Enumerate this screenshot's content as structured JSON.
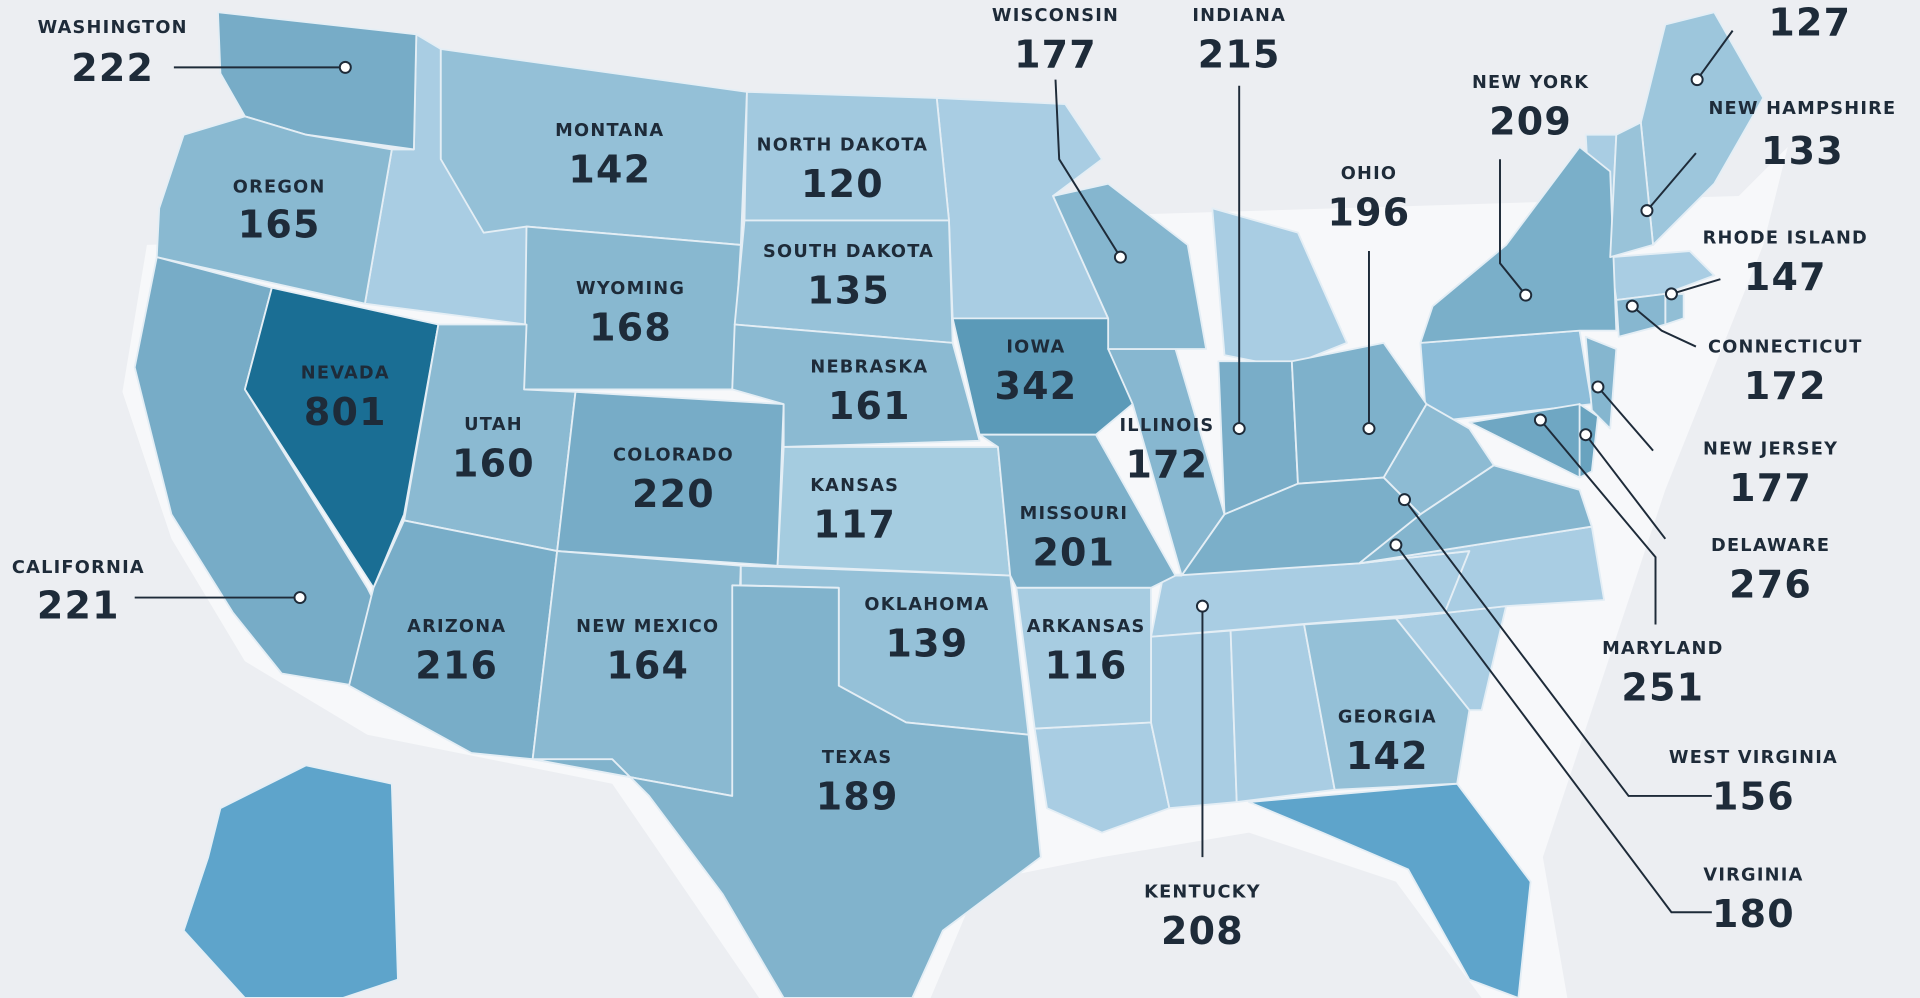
{
  "states": [
    {
      "name": "WASHINGTON",
      "value": 222
    },
    {
      "name": "OREGON",
      "value": 165
    },
    {
      "name": "CALIFORNIA",
      "value": 221
    },
    {
      "name": "NEVADA",
      "value": 801
    },
    {
      "name": "MONTANA",
      "value": 142
    },
    {
      "name": "WYOMING",
      "value": 168
    },
    {
      "name": "UTAH",
      "value": 160
    },
    {
      "name": "COLORADO",
      "value": 220
    },
    {
      "name": "ARIZONA",
      "value": 216
    },
    {
      "name": "NEW MEXICO",
      "value": 164
    },
    {
      "name": "NORTH DAKOTA",
      "value": 120
    },
    {
      "name": "SOUTH DAKOTA",
      "value": 135
    },
    {
      "name": "NEBRASKA",
      "value": 161
    },
    {
      "name": "KANSAS",
      "value": 117
    },
    {
      "name": "OKLAHOMA",
      "value": 139
    },
    {
      "name": "TEXAS",
      "value": 189
    },
    {
      "name": "IOWA",
      "value": 342
    },
    {
      "name": "MISSOURI",
      "value": 201
    },
    {
      "name": "ARKANSAS",
      "value": 116
    },
    {
      "name": "ILLINOIS",
      "value": 172
    },
    {
      "name": "WISCONSIN",
      "value": 177
    },
    {
      "name": "INDIANA",
      "value": 215
    },
    {
      "name": "OHIO",
      "value": 196
    },
    {
      "name": "NEW YORK",
      "value": 209
    },
    {
      "value": 127
    },
    {
      "name": "NEW HAMPSHIRE",
      "value": 133
    },
    {
      "name": "RHODE ISLAND",
      "value": 147
    },
    {
      "name": "CONNECTICUT",
      "value": 172
    },
    {
      "name": "NEW JERSEY",
      "value": 177
    },
    {
      "name": "DELAWARE",
      "value": 276
    },
    {
      "name": "MARYLAND",
      "value": 251
    },
    {
      "name": "WEST VIRGINIA",
      "value": 156
    },
    {
      "name": "VIRGINIA",
      "value": 180
    },
    {
      "name": "KENTUCKY",
      "value": 208
    },
    {
      "name": "GEORGIA",
      "value": 142
    }
  ]
}
